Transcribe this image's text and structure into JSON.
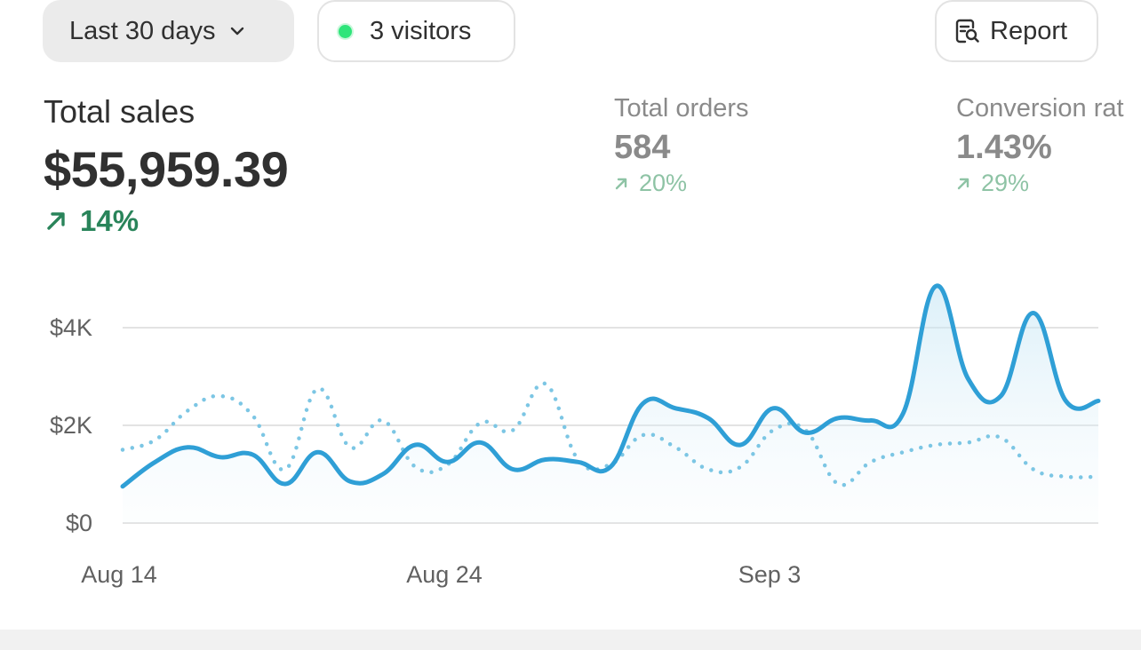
{
  "toolbar": {
    "date_range_label": "Last 30 days",
    "visitors_label": "3 visitors",
    "report_label": "Report",
    "live_dot_color": "#2ee57a"
  },
  "metrics": {
    "total_sales": {
      "title": "Total sales",
      "value": "$55,959.39",
      "change": "14%",
      "trend": "up",
      "color": "#29845a"
    },
    "total_orders": {
      "title": "Total orders",
      "value": "584",
      "change": "20%",
      "trend": "up"
    },
    "conversion_rate": {
      "title": "Conversion rat",
      "value": "1.43%",
      "change": "29%",
      "trend": "up"
    }
  },
  "chart_data": {
    "type": "line",
    "y_ticks": [
      "$4K",
      "$2K",
      "$0"
    ],
    "x_ticks": [
      "Aug 14",
      "Aug 24",
      "Sep 3"
    ],
    "ylim": [
      0,
      4000
    ],
    "grid": true,
    "series": [
      {
        "style": "solid",
        "color": "#2f9fd6",
        "x": [
          "Aug 14",
          "Aug 15",
          "Aug 16",
          "Aug 17",
          "Aug 18",
          "Aug 19",
          "Aug 20",
          "Aug 21",
          "Aug 22",
          "Aug 23",
          "Aug 24",
          "Aug 25",
          "Aug 26",
          "Aug 27",
          "Aug 28",
          "Aug 29",
          "Aug 30",
          "Aug 31",
          "Sep 1",
          "Sep 2",
          "Sep 3",
          "Sep 4",
          "Sep 5",
          "Sep 6",
          "Sep 7",
          "Sep 8",
          "Sep 9",
          "Sep 10",
          "Sep 11",
          "Sep 12",
          "Sep 13"
        ],
        "values": [
          750,
          1250,
          1550,
          1350,
          1400,
          800,
          1450,
          850,
          1000,
          1600,
          1250,
          1650,
          1100,
          1300,
          1250,
          1150,
          2450,
          2350,
          2150,
          1600,
          2350,
          1850,
          2150,
          2100,
          2250,
          4850,
          2950,
          2600,
          4300,
          2500,
          2500
        ]
      },
      {
        "style": "dotted",
        "color": "#7cc6e4",
        "x": [
          "Aug 14",
          "Aug 15",
          "Aug 16",
          "Aug 17",
          "Aug 18",
          "Aug 19",
          "Aug 20",
          "Aug 21",
          "Aug 22",
          "Aug 23",
          "Aug 24",
          "Aug 25",
          "Aug 26",
          "Aug 27",
          "Aug 28",
          "Aug 29",
          "Aug 30",
          "Aug 31",
          "Sep 1",
          "Sep 2",
          "Sep 3",
          "Sep 4",
          "Sep 5",
          "Sep 6",
          "Sep 7",
          "Sep 8",
          "Sep 9",
          "Sep 10",
          "Sep 11",
          "Sep 12",
          "Sep 13"
        ],
        "values": [
          1500,
          1700,
          2300,
          2600,
          2200,
          1100,
          2750,
          1550,
          2100,
          1150,
          1200,
          2050,
          1900,
          2850,
          1300,
          1200,
          1800,
          1550,
          1100,
          1150,
          1900,
          1900,
          800,
          1250,
          1450,
          1600,
          1650,
          1750,
          1100,
          950,
          950
        ]
      }
    ]
  }
}
